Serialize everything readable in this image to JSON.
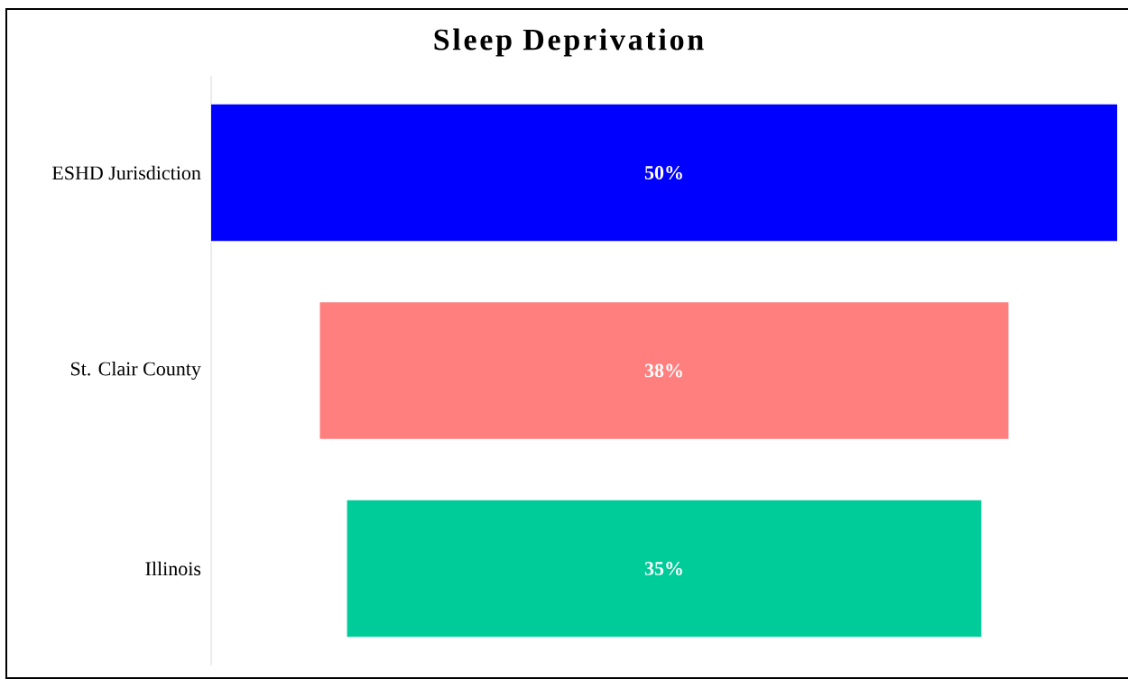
{
  "chart_data": {
    "type": "other",
    "title": "Sleep Deprivation",
    "categories": [
      "ESHD Jurisdiction",
      "St. Clair County",
      "Illinois"
    ],
    "values": [
      50,
      38,
      35
    ],
    "value_labels": [
      "50%",
      "38%",
      "35%"
    ],
    "colors": [
      "#0000ff",
      "#ff7f7f",
      "#00cc99"
    ]
  }
}
